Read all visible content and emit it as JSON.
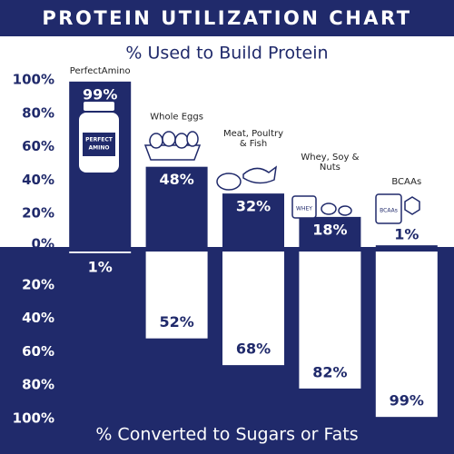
{
  "chart_data": {
    "type": "diverging_bar",
    "title": "PROTEIN UTILIZATION CHART",
    "categories": [
      "PerfectAmino",
      "Whole Eggs",
      "Meat, Poultry & Fish",
      "Whey, Soy & Nuts",
      "BCAAs"
    ],
    "series": [
      {
        "name": "% Used to Build Protein",
        "color": "#202a6b",
        "values": [
          99,
          48,
          32,
          18,
          1
        ],
        "value_labels": [
          "99%",
          "48%",
          "32%",
          "18%",
          "1%"
        ]
      },
      {
        "name": "% Converted to Sugars or Fats",
        "color": "#ffffff",
        "axis": "y2",
        "values": [
          1,
          52,
          68,
          82,
          99
        ],
        "value_labels": [
          "1%",
          "52%",
          "68%",
          "82%",
          "99%"
        ]
      }
    ],
    "ylim": [
      0,
      100
    ],
    "yticks": [
      {
        "value": 0,
        "label": "0%"
      },
      {
        "value": 20,
        "label": "20%"
      },
      {
        "value": 40,
        "label": "40%"
      },
      {
        "value": 60,
        "label": "60%"
      },
      {
        "value": 80,
        "label": "80%"
      },
      {
        "value": 100,
        "label": "100%"
      }
    ],
    "y2lim": [
      0,
      100
    ],
    "y2ticks": [
      {
        "value": 20,
        "label": "20%"
      },
      {
        "value": 40,
        "label": "40%"
      },
      {
        "value": 60,
        "label": "60%"
      },
      {
        "value": 80,
        "label": "80%"
      },
      {
        "value": 100,
        "label": "100%"
      }
    ]
  }
}
